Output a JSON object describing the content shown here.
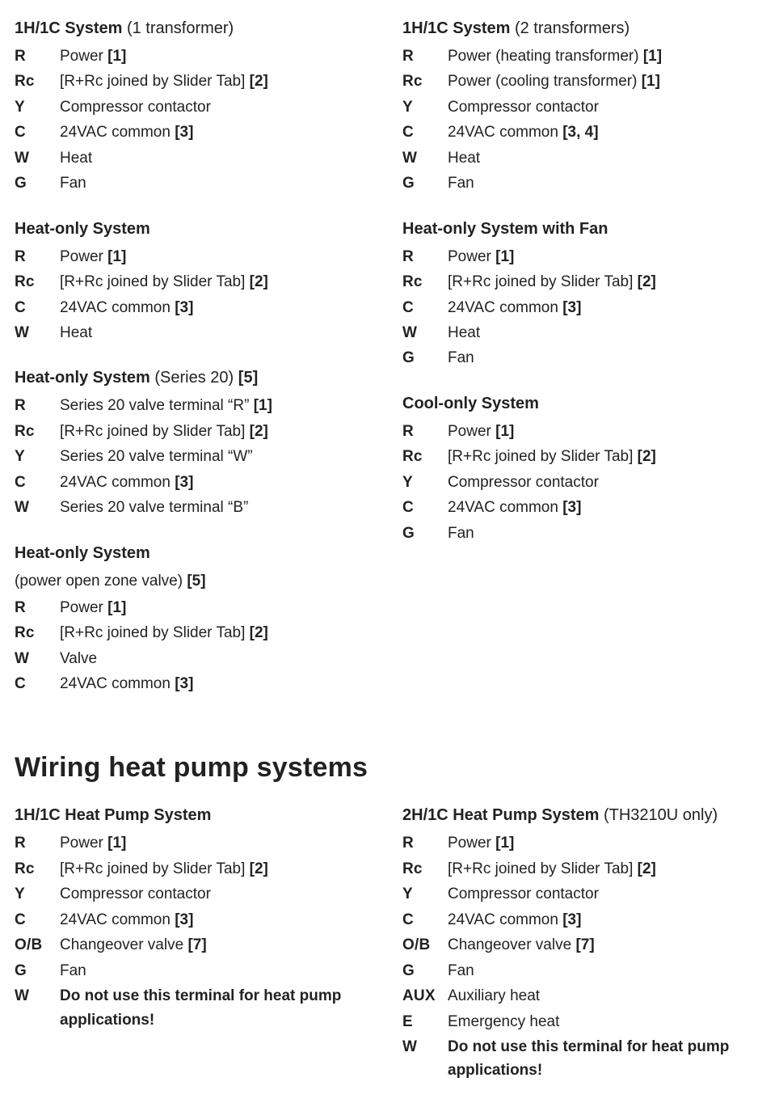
{
  "colors": {
    "text": "#222222",
    "background": "#ffffff"
  },
  "typography": {
    "body_size_pt": 14,
    "heading_size_pt": 26,
    "section_title_size_pt": 15,
    "font_family": "Arial"
  },
  "top": {
    "left": [
      {
        "title": "1H/1C System",
        "subtitle": " (1 transformer)",
        "rows": [
          {
            "label": "R",
            "desc": "Power ",
            "ref": "[1]"
          },
          {
            "label": "Rc",
            "desc": "[R+Rc joined by Slider Tab] ",
            "ref": "[2]"
          },
          {
            "label": "Y",
            "desc": "Compressor contactor",
            "ref": ""
          },
          {
            "label": "C",
            "desc": "24VAC common ",
            "ref": "[3]"
          },
          {
            "label": "W",
            "desc": "Heat",
            "ref": ""
          },
          {
            "label": "G",
            "desc": "Fan",
            "ref": ""
          }
        ]
      },
      {
        "title": "Heat-only System",
        "subtitle": "",
        "rows": [
          {
            "label": "R",
            "desc": "Power ",
            "ref": "[1]"
          },
          {
            "label": "Rc",
            "desc": "[R+Rc joined by Slider Tab] ",
            "ref": "[2]"
          },
          {
            "label": "C",
            "desc": "24VAC common ",
            "ref": "[3]"
          },
          {
            "label": "W",
            "desc": "Heat",
            "ref": ""
          }
        ]
      },
      {
        "title": "Heat-only System",
        "subtitle": " (Series 20) ",
        "title_ref": "[5]",
        "rows": [
          {
            "label": "R",
            "desc": "Series 20 valve terminal “R” ",
            "ref": "[1]"
          },
          {
            "label": "Rc",
            "desc": "[R+Rc joined by Slider Tab] ",
            "ref": "[2]"
          },
          {
            "label": "Y",
            "desc": "Series 20 valve terminal “W”",
            "ref": ""
          },
          {
            "label": "C",
            "desc": "24VAC common ",
            "ref": "[3]"
          },
          {
            "label": "W",
            "desc": "Series 20 valve terminal “B”",
            "ref": ""
          }
        ]
      },
      {
        "title": "Heat-only System",
        "subtitle": "",
        "sub_line_text": "(power open zone valve) ",
        "sub_line_ref": "[5]",
        "rows": [
          {
            "label": "R",
            "desc": "Power ",
            "ref": "[1]"
          },
          {
            "label": "Rc",
            "desc": "[R+Rc joined by Slider Tab] ",
            "ref": "[2]"
          },
          {
            "label": "W",
            "desc": "Valve",
            "ref": ""
          },
          {
            "label": "C",
            "desc": "24VAC common ",
            "ref": "[3]"
          }
        ]
      }
    ],
    "right": [
      {
        "title": "1H/1C System",
        "subtitle": " (2 transformers)",
        "rows": [
          {
            "label": "R",
            "desc": "Power (heating transformer) ",
            "ref": "[1]"
          },
          {
            "label": "Rc",
            "desc": "Power (cooling transformer) ",
            "ref": "[1]"
          },
          {
            "label": "Y",
            "desc": "Compressor contactor",
            "ref": ""
          },
          {
            "label": "C",
            "desc": "24VAC common ",
            "ref": "[3, 4]"
          },
          {
            "label": "W",
            "desc": "Heat",
            "ref": ""
          },
          {
            "label": "G",
            "desc": "Fan",
            "ref": ""
          }
        ]
      },
      {
        "title": "Heat-only System with Fan",
        "subtitle": "",
        "rows": [
          {
            "label": "R",
            "desc": "Power ",
            "ref": "[1]"
          },
          {
            "label": "Rc",
            "desc": "[R+Rc joined by Slider Tab] ",
            "ref": "[2]"
          },
          {
            "label": "C",
            "desc": "24VAC common ",
            "ref": "[3]"
          },
          {
            "label": "W",
            "desc": "Heat",
            "ref": ""
          },
          {
            "label": "G",
            "desc": "Fan",
            "ref": ""
          }
        ]
      },
      {
        "title": "Cool-only System",
        "subtitle": "",
        "rows": [
          {
            "label": "R",
            "desc": "Power ",
            "ref": "[1]"
          },
          {
            "label": "Rc",
            "desc": "[R+Rc joined by Slider Tab] ",
            "ref": "[2]"
          },
          {
            "label": "Y",
            "desc": "Compressor contactor",
            "ref": ""
          },
          {
            "label": "C",
            "desc": "24VAC common ",
            "ref": "[3]"
          },
          {
            "label": "G",
            "desc": "Fan",
            "ref": ""
          }
        ]
      }
    ]
  },
  "heading": "Wiring heat pump systems",
  "bottom": {
    "left": [
      {
        "title": "1H/1C Heat Pump System",
        "subtitle": "",
        "rows": [
          {
            "label": "R",
            "desc": "Power ",
            "ref": "[1]"
          },
          {
            "label": "Rc",
            "desc": "[R+Rc joined by Slider Tab] ",
            "ref": "[2]"
          },
          {
            "label": "Y",
            "desc": "Compressor contactor",
            "ref": ""
          },
          {
            "label": "C",
            "desc": "24VAC common ",
            "ref": "[3]"
          },
          {
            "label": "O/B",
            "desc": "Changeover valve ",
            "ref": "[7]"
          },
          {
            "label": "G",
            "desc": "Fan",
            "ref": ""
          },
          {
            "label": "W",
            "desc": "Do not use this terminal for heat pump applications!",
            "ref": "",
            "bold": true
          }
        ]
      }
    ],
    "right": [
      {
        "title": "2H/1C Heat Pump System",
        "subtitle": " (TH3210U only)",
        "rows": [
          {
            "label": "R",
            "desc": "Power ",
            "ref": "[1]"
          },
          {
            "label": "Rc",
            "desc": "[R+Rc joined by Slider Tab] ",
            "ref": "[2]"
          },
          {
            "label": "Y",
            "desc": "Compressor contactor",
            "ref": ""
          },
          {
            "label": "C",
            "desc": "24VAC common ",
            "ref": "[3]"
          },
          {
            "label": "O/B",
            "desc": "Changeover valve ",
            "ref": "[7]"
          },
          {
            "label": "G",
            "desc": "Fan",
            "ref": ""
          },
          {
            "label": "AUX",
            "desc": "Auxiliary heat",
            "ref": ""
          },
          {
            "label": "E",
            "desc": "Emergency heat",
            "ref": ""
          },
          {
            "label": "W",
            "desc": "Do not use this terminal for heat pump applications!",
            "ref": "",
            "bold": true
          }
        ]
      }
    ]
  }
}
